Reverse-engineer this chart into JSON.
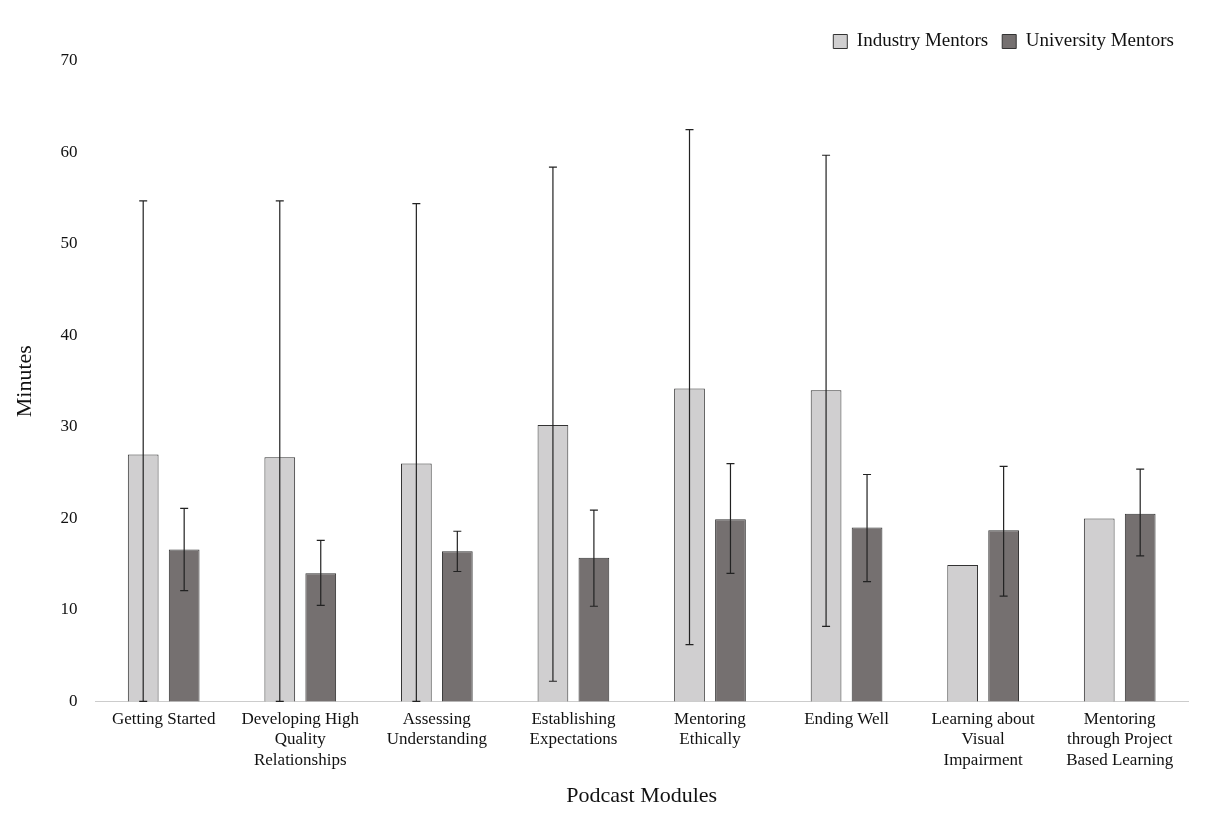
{
  "chart_data": {
    "type": "bar",
    "xlabel": "Podcast Modules",
    "ylabel": "Minutes",
    "categories": [
      "Getting Started",
      "Developing High Quality Relationships",
      "Assessing Understanding",
      "Establishing Expectations",
      "Mentoring Ethically",
      "Ending Well",
      "Learning about Visual Impairment",
      "Mentoring through Project Based Learning"
    ],
    "series": [
      {
        "name": "Industry Mentors",
        "color": "#d0cfd0",
        "values": [
          27.0,
          26.7,
          26.0,
          30.2,
          34.2,
          34.0,
          14.9,
          20.0
        ],
        "errors": [
          [
            0,
            54.7
          ],
          [
            0,
            54.7
          ],
          [
            0,
            54.4
          ],
          [
            2.2,
            58.4
          ],
          [
            6.2,
            62.5
          ],
          [
            8.2,
            59.7
          ],
          null,
          null
        ]
      },
      {
        "name": "University Mentors",
        "color": "#757070",
        "values": [
          16.6,
          14.0,
          16.4,
          15.7,
          19.9,
          19.0,
          18.7,
          20.5
        ],
        "errors": [
          [
            12.1,
            21.1
          ],
          [
            10.5,
            17.6
          ],
          [
            14.2,
            18.6
          ],
          [
            10.4,
            20.9
          ],
          [
            14.0,
            26.0
          ],
          [
            13.1,
            24.8
          ],
          [
            11.5,
            25.7
          ],
          [
            15.9,
            25.4
          ]
        ]
      }
    ],
    "ylim": [
      0,
      70
    ],
    "yticks": [
      0,
      10,
      20,
      30,
      40,
      50,
      60,
      70
    ],
    "grid": false,
    "legend": "top right"
  }
}
